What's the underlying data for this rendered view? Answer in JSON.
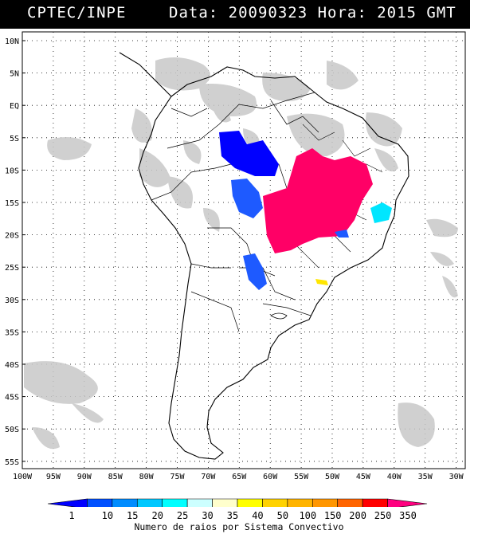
{
  "header": {
    "left": "CPTEC/INPE",
    "right": "Data: 20090323 Hora: 2015 GMT"
  },
  "lat_labels": [
    "10N",
    "5N",
    "EQ",
    "5S",
    "10S",
    "15S",
    "20S",
    "25S",
    "30S",
    "35S",
    "40S",
    "45S",
    "50S",
    "55S"
  ],
  "lon_labels": [
    "100W",
    "95W",
    "90W",
    "85W",
    "80W",
    "75W",
    "70W",
    "65W",
    "60W",
    "55W",
    "50W",
    "45W",
    "40W",
    "35W",
    "30W"
  ],
  "legend": {
    "values": [
      "1",
      "10",
      "15",
      "20",
      "25",
      "30",
      "35",
      "40",
      "50",
      "100",
      "150",
      "200",
      "250",
      "350"
    ],
    "colors": [
      "#0000ff",
      "#0050ff",
      "#008cff",
      "#00c8ff",
      "#00ffff",
      "#ccffff",
      "#ffffcc",
      "#ffff00",
      "#ffd200",
      "#ffb400",
      "#ff9600",
      "#ff6400",
      "#ff0000",
      "#ff0080"
    ],
    "caption": "Numero de raios por Sistema Convectivo"
  },
  "colors": {
    "cloud": "#c8c8c8",
    "blue_cluster": "#0000ff",
    "mid_blue": "#1e5aff",
    "magenta": "#ff0066",
    "cyan": "#00e6ff",
    "yellow": "#ffe600"
  }
}
